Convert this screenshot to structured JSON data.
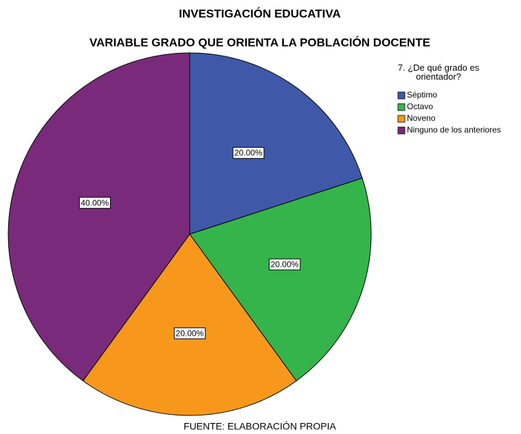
{
  "chart_data": {
    "type": "pie",
    "title": "INVESTIGACIÓN EDUCATIVA",
    "subtitle": "VARIABLE GRADO QUE ORIENTA  LA POBLACIÓN DOCENTE",
    "legend_title": "7. ¿De qué grado es orientador?",
    "categories": [
      "Séptimo",
      "Octavo",
      "Noveno",
      "Ninguno de los anteriores"
    ],
    "values": [
      20,
      20,
      20,
      40
    ],
    "value_labels": [
      "20.00%",
      "20.00%",
      "20.00%",
      "40.00%"
    ],
    "colors": [
      "#3f58a8",
      "#35b44b",
      "#f7981d",
      "#7a2a7a"
    ],
    "legend": "top-right",
    "source": "FUENTE: ELABORACIÓN PROPIA"
  }
}
